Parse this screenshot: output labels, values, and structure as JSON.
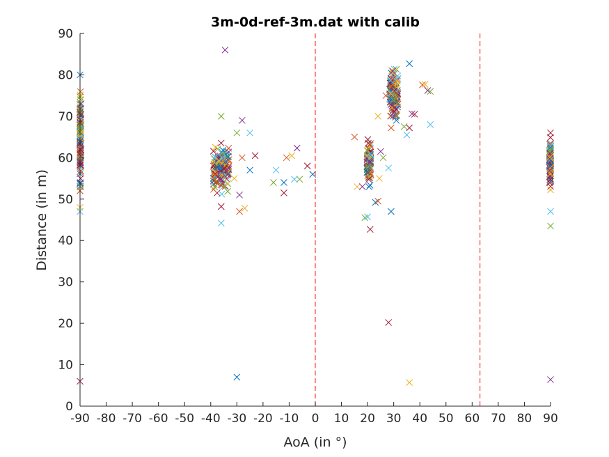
{
  "chart_data": {
    "type": "scatter",
    "title": "3m-0d-ref-3m.dat with calib",
    "xlabel": "AoA (in °)",
    "ylabel": "Distance (in m)",
    "xlim": [
      -90,
      90
    ],
    "ylim": [
      0,
      90
    ],
    "xticks": [
      -90,
      -80,
      -70,
      -60,
      -50,
      -40,
      -30,
      -20,
      -10,
      0,
      10,
      20,
      30,
      40,
      50,
      60,
      70,
      80,
      90
    ],
    "yticks": [
      0,
      10,
      20,
      30,
      40,
      50,
      60,
      70,
      80,
      90
    ],
    "grid": false,
    "marker": "x",
    "reference_lines": [
      {
        "x": 0,
        "color": "#ff3b3b",
        "style": "dashed"
      },
      {
        "x": 63,
        "color": "#ff3b3b",
        "style": "dashed"
      }
    ],
    "palette": [
      "#0072BD",
      "#D95319",
      "#EDB120",
      "#7E2F8E",
      "#77AC30",
      "#4DBEEE",
      "#A2142F"
    ],
    "clusters": [
      {
        "aoa": -90,
        "aoa_spread": 0.4,
        "dist_min": 48,
        "dist_max": 80,
        "count": 120
      },
      {
        "aoa": -36,
        "aoa_spread": 3.0,
        "dist_min": 50,
        "dist_max": 65,
        "count": 150
      },
      {
        "aoa": 20.5,
        "aoa_spread": 0.8,
        "dist_min": 52,
        "dist_max": 66,
        "count": 90
      },
      {
        "aoa": 30,
        "aoa_spread": 1.6,
        "dist_min": 68,
        "dist_max": 83,
        "count": 150
      },
      {
        "aoa": 90,
        "aoa_spread": 0.4,
        "dist_min": 50,
        "dist_max": 66,
        "count": 90
      }
    ],
    "points": [
      [
        -90,
        47.0
      ],
      [
        -90,
        6.0
      ],
      [
        -90,
        80.0
      ],
      [
        -90,
        52.0
      ],
      [
        -90,
        48.0
      ],
      [
        -34.5,
        86.0
      ],
      [
        -36,
        70.0
      ],
      [
        -36,
        44.2
      ],
      [
        -36,
        48.2
      ],
      [
        -30,
        7.0
      ],
      [
        -29,
        47.0
      ],
      [
        -27,
        47.8
      ],
      [
        -28,
        69.0
      ],
      [
        -30,
        66.0
      ],
      [
        -25,
        66.0
      ],
      [
        -23,
        60.5
      ],
      [
        -25,
        57.0
      ],
      [
        -28,
        60.0
      ],
      [
        -31,
        55.0
      ],
      [
        -29,
        51.0
      ],
      [
        -16,
        54.0
      ],
      [
        -15,
        57.0
      ],
      [
        -12,
        51.5
      ],
      [
        -12,
        54.0
      ],
      [
        -11,
        60.0
      ],
      [
        -9,
        60.5
      ],
      [
        -7,
        62.3
      ],
      [
        -6,
        54.8
      ],
      [
        -8,
        54.8
      ],
      [
        -3,
        58.0
      ],
      [
        -1,
        56.0
      ],
      [
        15,
        65.0
      ],
      [
        16,
        53.0
      ],
      [
        18,
        53.0
      ],
      [
        19,
        45.5
      ],
      [
        20,
        45.7
      ],
      [
        21,
        42.7
      ],
      [
        23,
        49.2
      ],
      [
        24,
        49.5
      ],
      [
        24.5,
        55.0
      ],
      [
        25,
        61.5
      ],
      [
        26,
        60.0
      ],
      [
        28,
        57.5
      ],
      [
        28,
        20.2
      ],
      [
        29,
        47.0
      ],
      [
        29,
        67.2
      ],
      [
        36,
        5.7
      ],
      [
        37,
        70.6
      ],
      [
        34,
        67.5
      ],
      [
        35,
        65.5
      ],
      [
        36,
        67.2
      ],
      [
        36,
        82.7
      ],
      [
        41,
        77.6
      ],
      [
        42,
        77.7
      ],
      [
        43,
        76.2
      ],
      [
        44,
        76.0
      ],
      [
        44,
        68.0
      ],
      [
        38,
        70.5
      ],
      [
        31,
        69.0
      ],
      [
        27,
        75.0
      ],
      [
        24,
        70.0
      ],
      [
        90,
        6.4
      ],
      [
        90,
        43.5
      ],
      [
        90,
        47.0
      ],
      [
        90,
        66.0
      ]
    ]
  }
}
